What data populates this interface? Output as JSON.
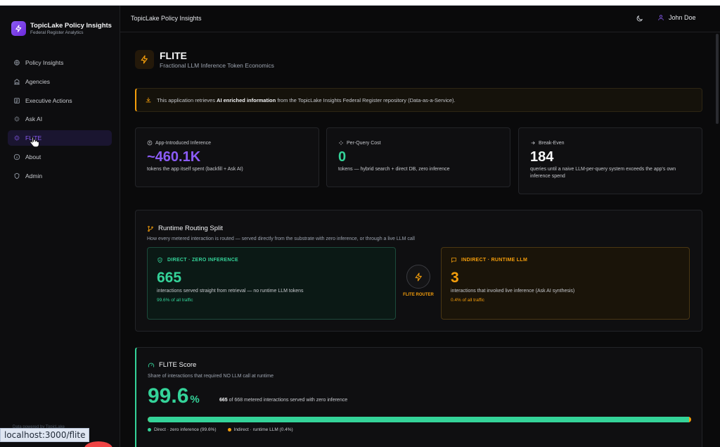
{
  "brand": {
    "title": "TopicLake Policy Insights",
    "subtitle": "Federal Register Analytics"
  },
  "sidebar": {
    "items": [
      {
        "label": "Policy Insights",
        "icon": "brain-icon"
      },
      {
        "label": "Agencies",
        "icon": "building-icon"
      },
      {
        "label": "Executive Actions",
        "icon": "gavel-icon"
      },
      {
        "label": "Ask AI",
        "icon": "sparkles-icon"
      },
      {
        "label": "FLITE",
        "icon": "zap-icon",
        "active": true
      },
      {
        "label": "About",
        "icon": "info-icon"
      },
      {
        "label": "Admin",
        "icon": "shield-icon"
      }
    ],
    "footer": "Data powered by TopicLake"
  },
  "header": {
    "title": "TopicLake Policy Insights",
    "user": "John Doe"
  },
  "page": {
    "title": "FLITE",
    "subtitle": "Fractional LLM Inference Token Economics"
  },
  "alert": {
    "prefix": "This application retrieves ",
    "bold": "AI enriched information",
    "suffix": " from the TopicLake Insights Federal Register repository (Data-as-a-Service)."
  },
  "stats": [
    {
      "label": "App-Introduced Inference",
      "value": "~460.1K",
      "desc": "tokens the app itself spent (backfill + Ask AI)"
    },
    {
      "label": "Per-Query Cost",
      "value": "0",
      "desc": "tokens — hybrid search + direct DB, zero inference"
    },
    {
      "label": "Break-Even",
      "value": "184",
      "desc": "queries until a naive LLM-per-query system exceeds the app's own inference spend"
    }
  ],
  "routing": {
    "title": "Runtime Routing Split",
    "subtitle": "How every metered interaction is routed — served directly from the substrate with zero inference, or through a live LLM call",
    "direct": {
      "label": "DIRECT · ZERO INFERENCE",
      "value": "665",
      "desc": "interactions served straight from retrieval — no runtime LLM tokens",
      "pct": "99.6% of all traffic"
    },
    "router_label": "FLITE ROUTER",
    "indirect": {
      "label": "INDIRECT · RUNTIME LLM",
      "value": "3",
      "desc": "interactions that invoked live inference (Ask AI synthesis)",
      "pct": "0.4% of all traffic"
    }
  },
  "score": {
    "title": "FLITE Score",
    "subtitle": "Share of interactions that required NO LLM call at runtime",
    "value": "99.6",
    "unit": "%",
    "direct_count": "665",
    "text_suffix": " of 668 metered interactions served with zero inference",
    "fill_percent": 99.6,
    "legend_direct": "Direct · zero inference (99.6%)",
    "legend_indirect": "Indirect · runtime LLM (0.4%)"
  },
  "status_url": "localhost:3000/flite",
  "colors": {
    "accent": "#8b5cf6",
    "direct": "#34d399",
    "indirect": "#f59e0b"
  }
}
